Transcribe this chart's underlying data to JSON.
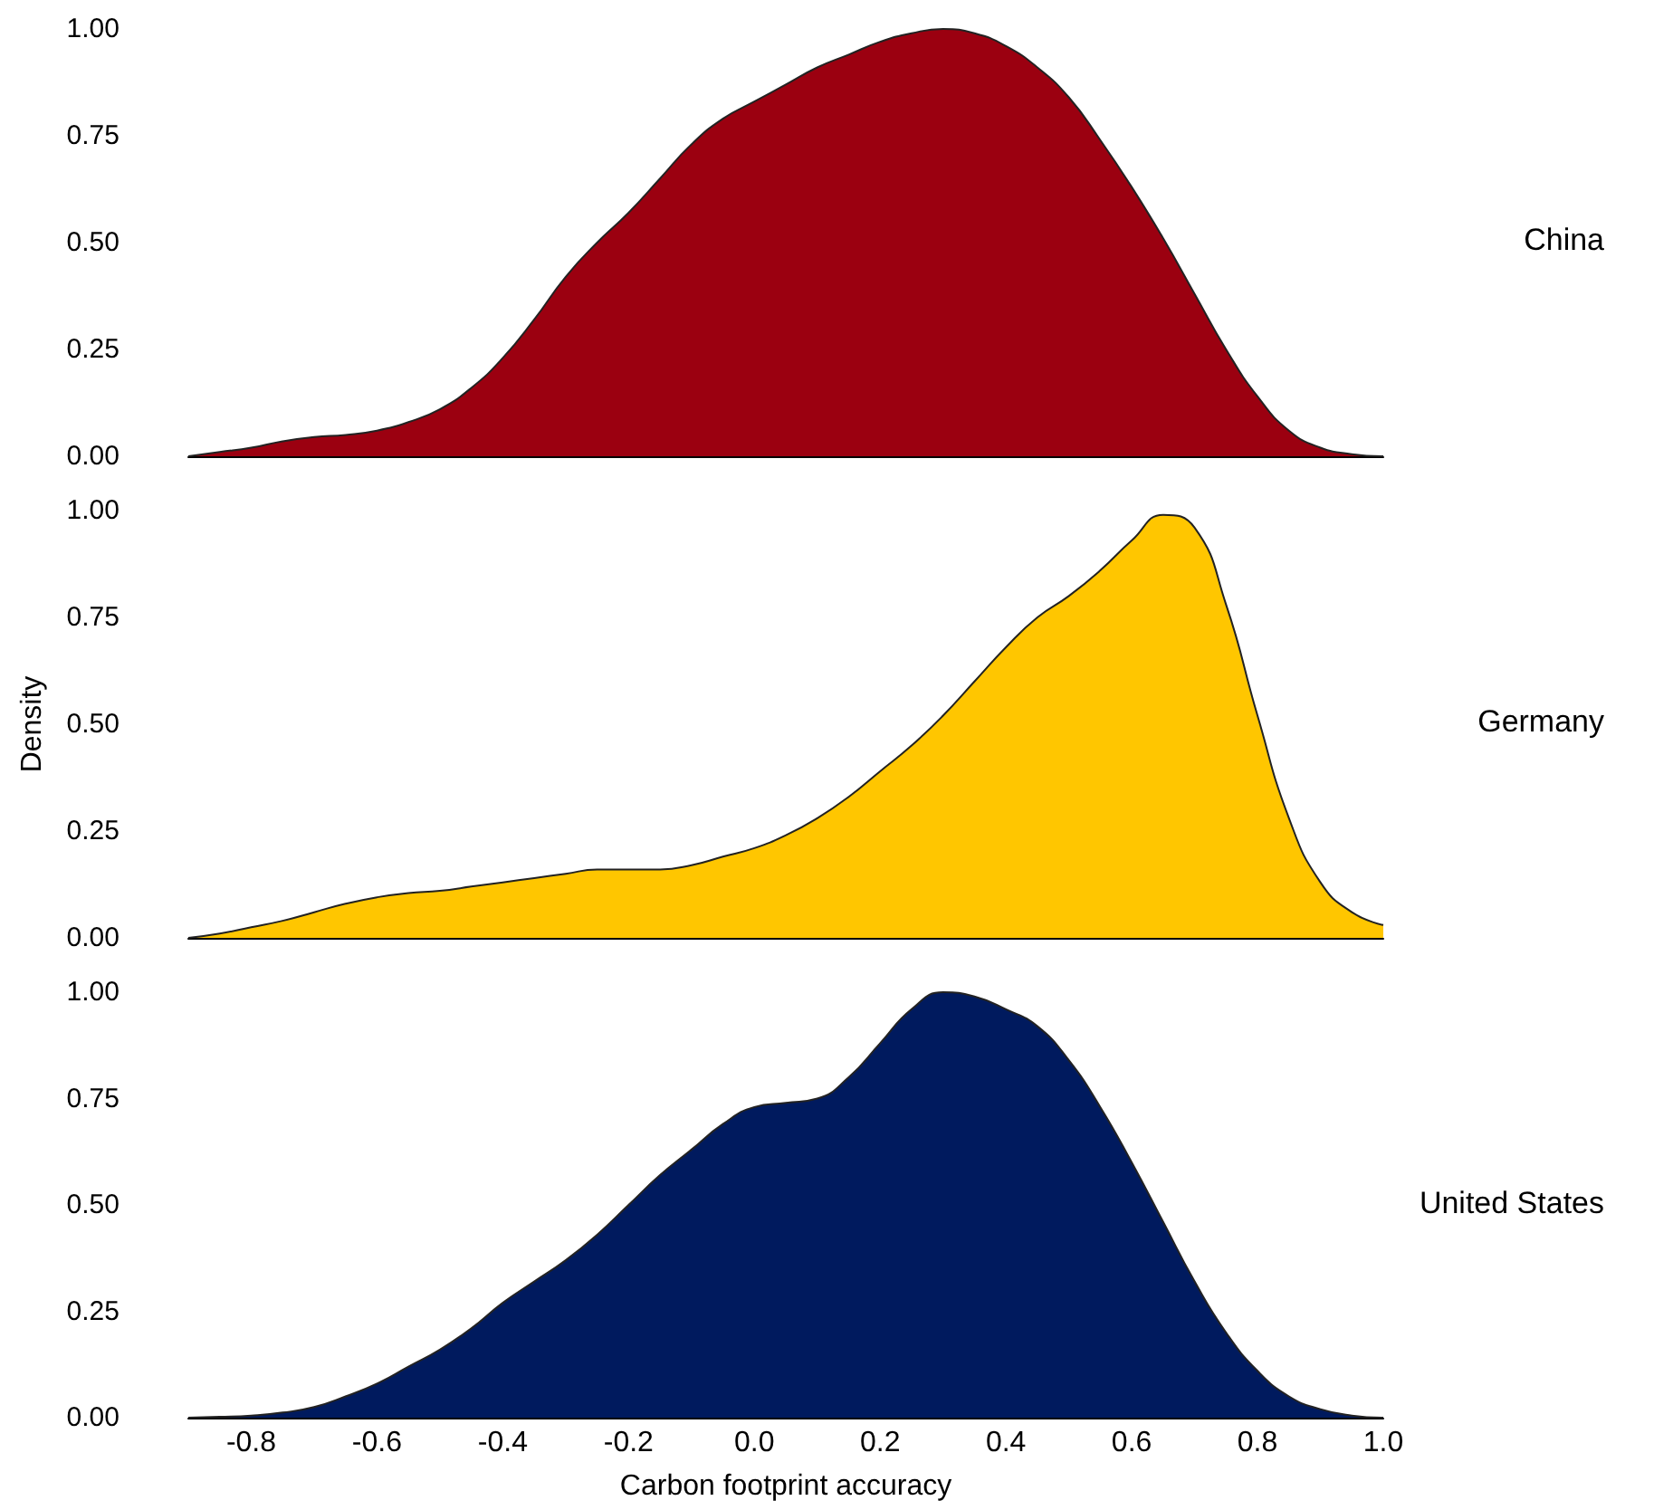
{
  "chart_data": [
    {
      "type": "area",
      "x": [
        -0.9,
        -0.85,
        -0.8,
        -0.75,
        -0.7,
        -0.65,
        -0.6,
        -0.55,
        -0.5,
        -0.45,
        -0.4,
        -0.35,
        -0.3,
        -0.25,
        -0.2,
        -0.15,
        -0.1,
        -0.05,
        0,
        0.05,
        0.1,
        0.15,
        0.2,
        0.25,
        0.3,
        0.35,
        0.4,
        0.45,
        0.5,
        0.55,
        0.6,
        0.65,
        0.7,
        0.75,
        0.8,
        0.85,
        0.9,
        0.95,
        1.0
      ],
      "series": [
        {
          "name": "China",
          "color": "#9b0010",
          "values": [
            0,
            0.01,
            0.02,
            0.035,
            0.045,
            0.05,
            0.06,
            0.08,
            0.11,
            0.16,
            0.23,
            0.32,
            0.42,
            0.5,
            0.57,
            0.65,
            0.73,
            0.79,
            0.83,
            0.87,
            0.91,
            0.94,
            0.97,
            0.99,
            1.0,
            0.99,
            0.96,
            0.91,
            0.84,
            0.74,
            0.63,
            0.51,
            0.38,
            0.25,
            0.14,
            0.06,
            0.02,
            0.005,
            0
          ]
        }
      ],
      "xlim": [
        -0.9,
        1.0
      ],
      "ylim": [
        0,
        1
      ],
      "yticks": [
        {
          "value": 0,
          "label": "0.00"
        },
        {
          "value": 0.25,
          "label": "0.25"
        },
        {
          "value": 0.5,
          "label": "0.50"
        },
        {
          "value": 0.75,
          "label": "0.75"
        },
        {
          "value": 1,
          "label": "1.00"
        }
      ],
      "tick_labels": "y",
      "grid": false,
      "legend": false
    },
    {
      "type": "area",
      "x": [
        -0.9,
        -0.85,
        -0.8,
        -0.75,
        -0.7,
        -0.65,
        -0.6,
        -0.55,
        -0.5,
        -0.45,
        -0.4,
        -0.35,
        -0.3,
        -0.25,
        -0.2,
        -0.15,
        -0.1,
        -0.05,
        0,
        0.05,
        0.1,
        0.15,
        0.2,
        0.25,
        0.3,
        0.35,
        0.4,
        0.45,
        0.5,
        0.55,
        0.6,
        0.65,
        0.7,
        0.75,
        0.8,
        0.85,
        0.9,
        0.95,
        1.0
      ],
      "series": [
        {
          "name": "Germany",
          "color": "#ffc600",
          "values": [
            0,
            0.01,
            0.025,
            0.04,
            0.06,
            0.08,
            0.095,
            0.105,
            0.11,
            0.12,
            0.13,
            0.14,
            0.15,
            0.16,
            0.16,
            0.16,
            0.17,
            0.19,
            0.21,
            0.24,
            0.28,
            0.33,
            0.39,
            0.45,
            0.52,
            0.6,
            0.68,
            0.75,
            0.8,
            0.86,
            0.93,
            0.99,
            0.96,
            0.78,
            0.52,
            0.28,
            0.13,
            0.06,
            0.03
          ]
        }
      ],
      "xlim": [
        -0.9,
        1.0
      ],
      "ylim": [
        0,
        1
      ],
      "yticks": [
        {
          "value": 0,
          "label": "0.00"
        },
        {
          "value": 0.25,
          "label": "0.25"
        },
        {
          "value": 0.5,
          "label": "0.50"
        },
        {
          "value": 0.75,
          "label": "0.75"
        },
        {
          "value": 1,
          "label": "1.00"
        }
      ],
      "ylabel": "Density",
      "tick_labels": "y",
      "grid": false,
      "legend": false
    },
    {
      "type": "area",
      "x": [
        -0.9,
        -0.85,
        -0.8,
        -0.75,
        -0.7,
        -0.65,
        -0.6,
        -0.55,
        -0.5,
        -0.45,
        -0.4,
        -0.35,
        -0.3,
        -0.25,
        -0.2,
        -0.15,
        -0.1,
        -0.05,
        0,
        0.05,
        0.1,
        0.15,
        0.2,
        0.25,
        0.3,
        0.35,
        0.4,
        0.45,
        0.5,
        0.55,
        0.6,
        0.65,
        0.7,
        0.75,
        0.8,
        0.85,
        0.9,
        0.95,
        1.0
      ],
      "series": [
        {
          "name": "United States",
          "color": "#001a5e",
          "values": [
            0,
            0.002,
            0.005,
            0.012,
            0.025,
            0.05,
            0.08,
            0.12,
            0.16,
            0.21,
            0.27,
            0.32,
            0.37,
            0.43,
            0.5,
            0.57,
            0.63,
            0.69,
            0.73,
            0.74,
            0.75,
            0.8,
            0.88,
            0.96,
            1.0,
            0.99,
            0.96,
            0.92,
            0.84,
            0.73,
            0.6,
            0.46,
            0.32,
            0.2,
            0.11,
            0.05,
            0.02,
            0.005,
            0
          ]
        }
      ],
      "xlim": [
        -0.9,
        1.0
      ],
      "xticks": [
        -0.8,
        -0.6,
        -0.4,
        -0.2,
        {
          "value": 0,
          "label": "0.0"
        },
        0.2,
        0.4,
        0.6,
        0.8,
        {
          "value": 1,
          "label": "1.0"
        }
      ],
      "ylim": [
        0,
        1
      ],
      "yticks": [
        {
          "value": 0,
          "label": "0.00"
        },
        {
          "value": 0.25,
          "label": "0.25"
        },
        {
          "value": 0.5,
          "label": "0.50"
        },
        {
          "value": 0.75,
          "label": "0.75"
        },
        {
          "value": 1,
          "label": "1.00"
        }
      ],
      "xlabel": "Carbon footprint accuracy",
      "grid": false,
      "legend": false
    }
  ]
}
